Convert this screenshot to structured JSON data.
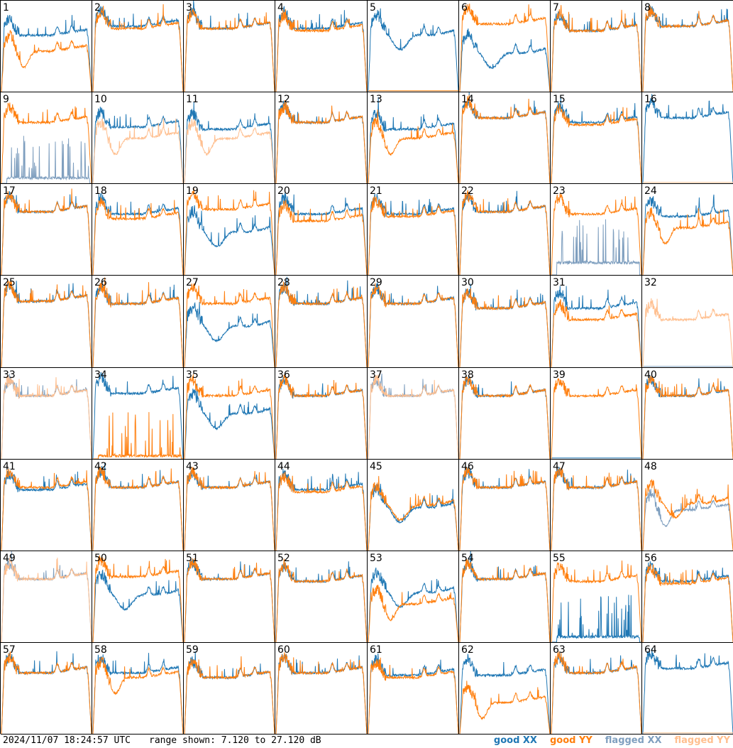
{
  "chart_data": {
    "type": "line",
    "title": "",
    "xlabel": "",
    "ylabel": "",
    "ylim": [
      7.12,
      27.12
    ],
    "grid_rows": 8,
    "grid_cols": 8,
    "legend_placement": "bottom-right",
    "series_styles": {
      "good_xx": "#1f77b4",
      "good_yy": "#ff7f0e",
      "flagged_xx": "#7f9fbf",
      "flagged_yy": "#ffbf8f"
    },
    "panels": [
      {
        "label": "1",
        "xx": {
          "profile": "standard",
          "level": 19.5,
          "flag": false
        },
        "yy": {
          "profile": "lowdip",
          "level": 16.0,
          "flag": false
        }
      },
      {
        "label": "2",
        "xx": {
          "profile": "standard",
          "level": 21.5,
          "flag": false
        },
        "yy": {
          "profile": "standard",
          "level": 21.0,
          "flag": false
        }
      },
      {
        "label": "3",
        "xx": {
          "profile": "standard",
          "level": 21.0,
          "flag": false
        },
        "yy": {
          "profile": "standard",
          "level": 21.0,
          "flag": false
        }
      },
      {
        "label": "4",
        "xx": {
          "profile": "standard",
          "level": 21.0,
          "flag": false
        },
        "yy": {
          "profile": "standard",
          "level": 20.5,
          "flag": false
        }
      },
      {
        "label": "5",
        "xx": {
          "profile": "dip",
          "level": 20.0,
          "flag": false
        },
        "yy": {
          "profile": "dead",
          "level": 7.5,
          "flag": false
        }
      },
      {
        "label": "6",
        "xx": {
          "profile": "dip",
          "level": 16.0,
          "flag": false
        },
        "yy": {
          "profile": "standard",
          "level": 22.0,
          "flag": false
        }
      },
      {
        "label": "7",
        "xx": {
          "profile": "standard",
          "level": 20.5,
          "flag": false
        },
        "yy": {
          "profile": "standard",
          "level": 20.5,
          "flag": false
        }
      },
      {
        "label": "8",
        "xx": {
          "profile": "standard",
          "level": 21.5,
          "flag": false
        },
        "yy": {
          "profile": "standard",
          "level": 21.5,
          "flag": false
        }
      },
      {
        "label": "9",
        "xx": {
          "profile": "spiky",
          "level": 8.0,
          "flag": true
        },
        "yy": {
          "profile": "standard",
          "level": 20.5,
          "flag": false
        }
      },
      {
        "label": "10",
        "xx": {
          "profile": "standard",
          "level": 19.5,
          "flag": false
        },
        "yy": {
          "profile": "lowdip",
          "level": 17.0,
          "flag": true
        }
      },
      {
        "label": "11",
        "xx": {
          "profile": "standard",
          "level": 19.0,
          "flag": false
        },
        "yy": {
          "profile": "lowdip",
          "level": 17.0,
          "flag": true
        }
      },
      {
        "label": "12",
        "xx": {
          "profile": "standard",
          "level": 20.5,
          "flag": false
        },
        "yy": {
          "profile": "standard",
          "level": 20.5,
          "flag": false
        }
      },
      {
        "label": "13",
        "xx": {
          "profile": "standard",
          "level": 19.0,
          "flag": false
        },
        "yy": {
          "profile": "lowdip",
          "level": 17.0,
          "flag": false
        }
      },
      {
        "label": "14",
        "xx": {
          "profile": "standard",
          "level": 21.5,
          "flag": false
        },
        "yy": {
          "profile": "standard",
          "level": 21.5,
          "flag": false
        }
      },
      {
        "label": "15",
        "xx": {
          "profile": "standard",
          "level": 20.5,
          "flag": false
        },
        "yy": {
          "profile": "standard",
          "level": 20.0,
          "flag": false
        }
      },
      {
        "label": "16",
        "xx": {
          "profile": "standard",
          "level": 21.5,
          "flag": false
        },
        "yy": {
          "profile": "dead",
          "level": 7.3,
          "flag": true
        }
      },
      {
        "label": "17",
        "xx": {
          "profile": "standard",
          "level": 21.0,
          "flag": false
        },
        "yy": {
          "profile": "standard",
          "level": 21.0,
          "flag": false
        }
      },
      {
        "label": "18",
        "xx": {
          "profile": "standard",
          "level": 20.5,
          "flag": false
        },
        "yy": {
          "profile": "standard",
          "level": 19.5,
          "flag": false
        }
      },
      {
        "label": "19",
        "xx": {
          "profile": "dip",
          "level": 17.0,
          "flag": false
        },
        "yy": {
          "profile": "standard",
          "level": 21.5,
          "flag": false
        }
      },
      {
        "label": "20",
        "xx": {
          "profile": "standard",
          "level": 20.5,
          "flag": false
        },
        "yy": {
          "profile": "standard",
          "level": 19.0,
          "flag": false
        }
      },
      {
        "label": "21",
        "xx": {
          "profile": "standard",
          "level": 20.5,
          "flag": false
        },
        "yy": {
          "profile": "standard",
          "level": 20.0,
          "flag": false
        }
      },
      {
        "label": "22",
        "xx": {
          "profile": "standard",
          "level": 21.0,
          "flag": false
        },
        "yy": {
          "profile": "standard",
          "level": 21.0,
          "flag": false
        }
      },
      {
        "label": "23",
        "xx": {
          "profile": "spiky",
          "level": 9.5,
          "flag": true
        },
        "yy": {
          "profile": "standard",
          "level": 20.5,
          "flag": false
        }
      },
      {
        "label": "24",
        "xx": {
          "profile": "standard",
          "level": 20.0,
          "flag": false
        },
        "yy": {
          "profile": "lowdip",
          "level": 17.5,
          "flag": false
        }
      },
      {
        "label": "25",
        "xx": {
          "profile": "standard",
          "level": 21.5,
          "flag": false
        },
        "yy": {
          "profile": "standard",
          "level": 21.5,
          "flag": false
        }
      },
      {
        "label": "26",
        "xx": {
          "profile": "standard",
          "level": 21.0,
          "flag": false
        },
        "yy": {
          "profile": "standard",
          "level": 21.0,
          "flag": false
        }
      },
      {
        "label": "27",
        "xx": {
          "profile": "dip",
          "level": 16.5,
          "flag": false
        },
        "yy": {
          "profile": "standard",
          "level": 21.0,
          "flag": false
        }
      },
      {
        "label": "28",
        "xx": {
          "profile": "standard",
          "level": 21.0,
          "flag": false
        },
        "yy": {
          "profile": "standard",
          "level": 21.0,
          "flag": false
        }
      },
      {
        "label": "29",
        "xx": {
          "profile": "standard",
          "level": 21.0,
          "flag": false
        },
        "yy": {
          "profile": "standard",
          "level": 21.0,
          "flag": false
        }
      },
      {
        "label": "30",
        "xx": {
          "profile": "standard",
          "level": 20.0,
          "flag": false
        },
        "yy": {
          "profile": "standard",
          "level": 20.0,
          "flag": false
        }
      },
      {
        "label": "31",
        "xx": {
          "profile": "standard",
          "level": 20.0,
          "flag": false
        },
        "yy": {
          "profile": "standard",
          "level": 17.5,
          "flag": false
        }
      },
      {
        "label": "32",
        "xx": {
          "profile": "dead",
          "level": 7.3,
          "flag": true
        },
        "yy": {
          "profile": "standard",
          "level": 17.5,
          "flag": true
        }
      },
      {
        "label": "33",
        "xx": {
          "profile": "standard",
          "level": 21.0,
          "flag": true
        },
        "yy": {
          "profile": "standard",
          "level": 21.0,
          "flag": true
        }
      },
      {
        "label": "34",
        "xx": {
          "profile": "standard",
          "level": 21.5,
          "flag": false
        },
        "yy": {
          "profile": "spiky",
          "level": 7.5,
          "flag": false
        }
      },
      {
        "label": "35",
        "xx": {
          "profile": "dip",
          "level": 17.5,
          "flag": false
        },
        "yy": {
          "profile": "standard",
          "level": 21.0,
          "flag": false
        }
      },
      {
        "label": "36",
        "xx": {
          "profile": "standard",
          "level": 21.0,
          "flag": false
        },
        "yy": {
          "profile": "standard",
          "level": 21.0,
          "flag": false
        }
      },
      {
        "label": "37",
        "xx": {
          "profile": "standard",
          "level": 21.0,
          "flag": true
        },
        "yy": {
          "profile": "standard",
          "level": 21.0,
          "flag": true
        }
      },
      {
        "label": "38",
        "xx": {
          "profile": "standard",
          "level": 21.0,
          "flag": false
        },
        "yy": {
          "profile": "standard",
          "level": 21.0,
          "flag": false
        }
      },
      {
        "label": "39",
        "xx": {
          "profile": "dead",
          "level": 7.3,
          "flag": false
        },
        "yy": {
          "profile": "standard",
          "level": 21.0,
          "flag": false
        }
      },
      {
        "label": "40",
        "xx": {
          "profile": "standard",
          "level": 21.0,
          "flag": false
        },
        "yy": {
          "profile": "standard",
          "level": 21.0,
          "flag": false
        }
      },
      {
        "label": "41",
        "xx": {
          "profile": "standard",
          "level": 20.5,
          "flag": false
        },
        "yy": {
          "profile": "standard",
          "level": 21.0,
          "flag": false
        }
      },
      {
        "label": "42",
        "xx": {
          "profile": "standard",
          "level": 21.0,
          "flag": false
        },
        "yy": {
          "profile": "standard",
          "level": 21.0,
          "flag": false
        }
      },
      {
        "label": "43",
        "xx": {
          "profile": "standard",
          "level": 21.0,
          "flag": false
        },
        "yy": {
          "profile": "standard",
          "level": 21.0,
          "flag": false
        }
      },
      {
        "label": "44",
        "xx": {
          "profile": "standard",
          "level": 20.5,
          "flag": false
        },
        "yy": {
          "profile": "standard",
          "level": 20.0,
          "flag": false
        }
      },
      {
        "label": "45",
        "xx": {
          "profile": "dip",
          "level": 17.0,
          "flag": false
        },
        "yy": {
          "profile": "dip",
          "level": 17.5,
          "flag": false
        }
      },
      {
        "label": "46",
        "xx": {
          "profile": "standard",
          "level": 21.0,
          "flag": false
        },
        "yy": {
          "profile": "standard",
          "level": 21.0,
          "flag": false
        }
      },
      {
        "label": "47",
        "xx": {
          "profile": "standard",
          "level": 21.0,
          "flag": false
        },
        "yy": {
          "profile": "standard",
          "level": 21.0,
          "flag": false
        }
      },
      {
        "label": "48",
        "xx": {
          "profile": "lowdip",
          "level": 16.0,
          "flag": true
        },
        "yy": {
          "profile": "dip",
          "level": 18.0,
          "flag": false
        }
      },
      {
        "label": "49",
        "xx": {
          "profile": "standard",
          "level": 21.0,
          "flag": true
        },
        "yy": {
          "profile": "standard",
          "level": 21.0,
          "flag": true
        }
      },
      {
        "label": "50",
        "xx": {
          "profile": "dip",
          "level": 18.0,
          "flag": false
        },
        "yy": {
          "profile": "standard",
          "level": 21.5,
          "flag": false
        }
      },
      {
        "label": "51",
        "xx": {
          "profile": "standard",
          "level": 21.0,
          "flag": false
        },
        "yy": {
          "profile": "standard",
          "level": 21.0,
          "flag": false
        }
      },
      {
        "label": "52",
        "xx": {
          "profile": "standard",
          "level": 20.5,
          "flag": false
        },
        "yy": {
          "profile": "standard",
          "level": 20.5,
          "flag": false
        }
      },
      {
        "label": "53",
        "xx": {
          "profile": "dip",
          "level": 18.5,
          "flag": false
        },
        "yy": {
          "profile": "lowdip",
          "level": 15.5,
          "flag": false
        }
      },
      {
        "label": "54",
        "xx": {
          "profile": "standard",
          "level": 21.0,
          "flag": false
        },
        "yy": {
          "profile": "standard",
          "level": 21.0,
          "flag": false
        }
      },
      {
        "label": "55",
        "xx": {
          "profile": "spiky",
          "level": 8.0,
          "flag": false
        },
        "yy": {
          "profile": "standard",
          "level": 20.5,
          "flag": false
        }
      },
      {
        "label": "56",
        "xx": {
          "profile": "standard",
          "level": 20.5,
          "flag": false
        },
        "yy": {
          "profile": "standard",
          "level": 20.0,
          "flag": false
        }
      },
      {
        "label": "57",
        "xx": {
          "profile": "standard",
          "level": 20.5,
          "flag": false
        },
        "yy": {
          "profile": "standard",
          "level": 20.5,
          "flag": false
        }
      },
      {
        "label": "58",
        "xx": {
          "profile": "standard",
          "level": 20.5,
          "flag": false
        },
        "yy": {
          "profile": "lowdip",
          "level": 19.5,
          "flag": false
        }
      },
      {
        "label": "59",
        "xx": {
          "profile": "standard",
          "level": 19.5,
          "flag": false
        },
        "yy": {
          "profile": "standard",
          "level": 19.5,
          "flag": false
        }
      },
      {
        "label": "60",
        "xx": {
          "profile": "standard",
          "level": 20.5,
          "flag": false
        },
        "yy": {
          "profile": "standard",
          "level": 20.5,
          "flag": false
        }
      },
      {
        "label": "61",
        "xx": {
          "profile": "standard",
          "level": 20.0,
          "flag": false
        },
        "yy": {
          "profile": "standard",
          "level": 19.5,
          "flag": false
        }
      },
      {
        "label": "62",
        "xx": {
          "profile": "standard",
          "level": 20.0,
          "flag": false
        },
        "yy": {
          "profile": "lowdip",
          "level": 14.0,
          "flag": false
        }
      },
      {
        "label": "63",
        "xx": {
          "profile": "standard",
          "level": 20.5,
          "flag": false
        },
        "yy": {
          "profile": "standard",
          "level": 20.5,
          "flag": false
        }
      },
      {
        "label": "64",
        "xx": {
          "profile": "standard",
          "level": 21.5,
          "flag": false
        },
        "yy": {
          "profile": "dead",
          "level": 7.3,
          "flag": true
        }
      }
    ]
  },
  "footer": {
    "timestamp": "2024/11/07 18:24:57 UTC",
    "range": "range shown: 7.120 to 27.120 dB"
  },
  "legend": {
    "good_xx": "good XX",
    "good_yy": "good YY",
    "flagged_xx": "flagged XX",
    "flagged_yy": "flagged YY"
  }
}
